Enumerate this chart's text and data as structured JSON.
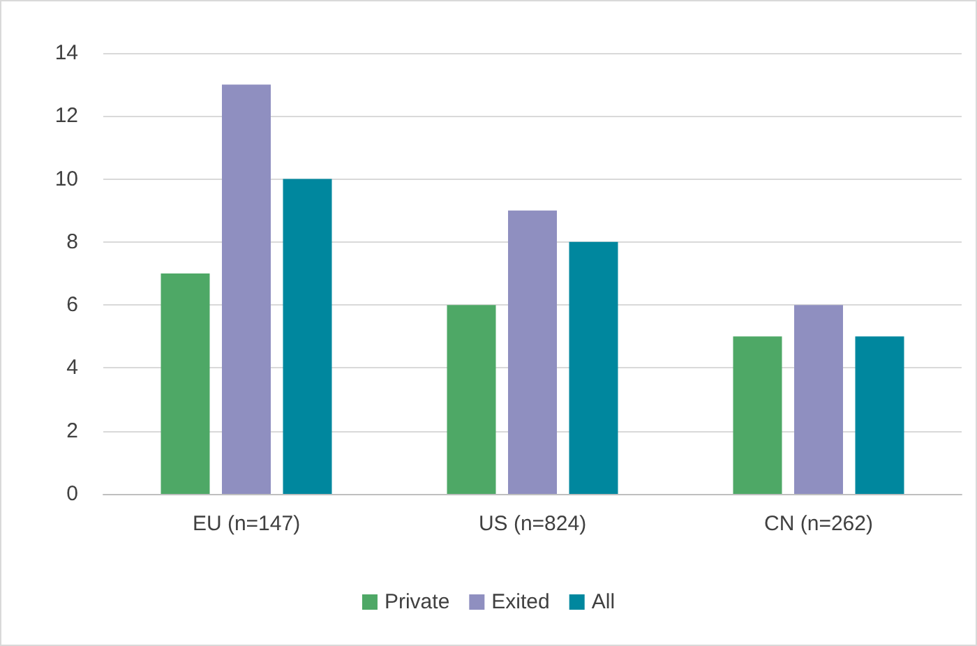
{
  "chart_data": {
    "type": "bar",
    "categories": [
      "EU (n=147)",
      "US (n=824)",
      "CN (n=262)"
    ],
    "series": [
      {
        "name": "Private",
        "color": "#4ea866",
        "values": [
          7,
          6,
          5
        ]
      },
      {
        "name": "Exited",
        "color": "#8f8fc0",
        "values": [
          13,
          9,
          6
        ]
      },
      {
        "name": "All",
        "color": "#00879e",
        "values": [
          10,
          8,
          5
        ]
      }
    ],
    "ylim": [
      0,
      14
    ],
    "yticks": [
      0,
      2,
      4,
      6,
      8,
      10,
      12,
      14
    ],
    "grid": "y",
    "legend": "bottom"
  }
}
